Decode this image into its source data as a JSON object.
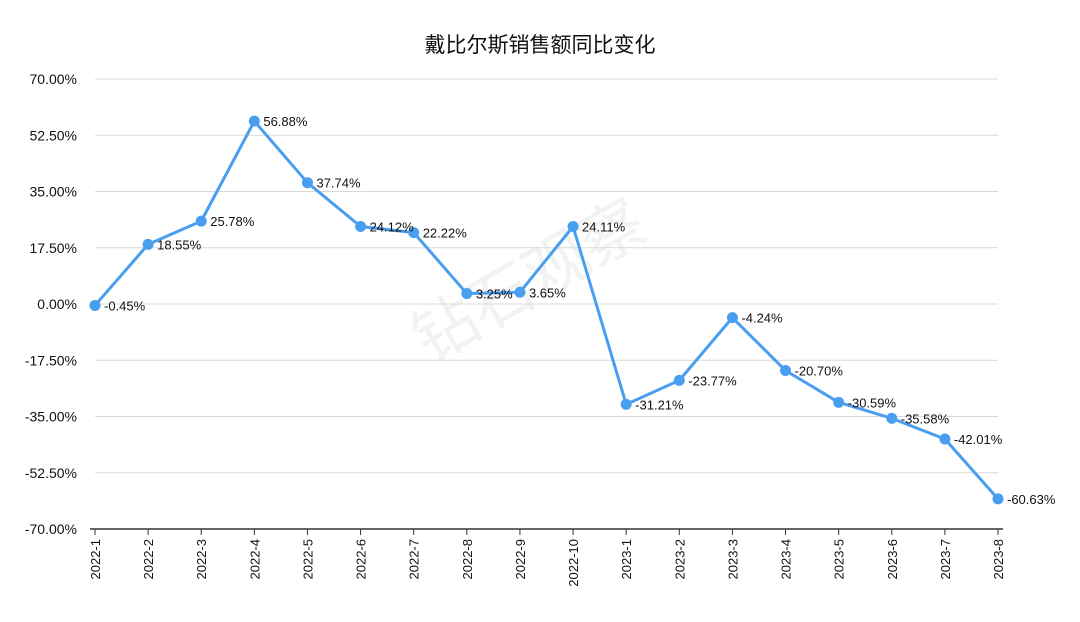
{
  "watermark": "钻石观察",
  "chart_data": {
    "type": "line",
    "title": "戴比尔斯销售额同比变化",
    "xlabel": "",
    "ylabel": "",
    "categories": [
      "2022-1",
      "2022-2",
      "2022-3",
      "2022-4",
      "2022-5",
      "2022-6",
      "2022-7",
      "2022-8",
      "2022-9",
      "2022-10",
      "2023-1",
      "2023-2",
      "2023-3",
      "2023-4",
      "2023-5",
      "2023-6",
      "2023-7",
      "2023-8"
    ],
    "series": [
      {
        "values": [
          -0.45,
          18.55,
          25.78,
          56.88,
          37.74,
          24.12,
          22.22,
          3.25,
          3.65,
          24.11,
          -31.21,
          -23.77,
          -4.24,
          -20.7,
          -30.59,
          -35.58,
          -42.01,
          -60.63
        ],
        "labels": [
          "-0.45%",
          "18.55%",
          "25.78%",
          "56.88%",
          "37.74%",
          "24.12%",
          "22.22%",
          "3.25%",
          "3.65%",
          "24.11%",
          "-31.21%",
          "-23.77%",
          "-4.24%",
          "-20.70%",
          "-30.59%",
          "-35.58%",
          "-42.01%",
          "-60.63%"
        ],
        "color": "#4a9ef0"
      }
    ],
    "ylim": [
      -70,
      70
    ],
    "yticks": [
      70,
      52.5,
      35,
      17.5,
      0,
      -17.5,
      -35,
      -52.5,
      -70
    ],
    "ytick_labels": [
      "70.00%",
      "52.50%",
      "35.00%",
      "17.50%",
      "0.00%",
      "-17.50%",
      "-35.00%",
      "-52.50%",
      "-70.00%"
    ],
    "grid": true,
    "legend": "none"
  }
}
